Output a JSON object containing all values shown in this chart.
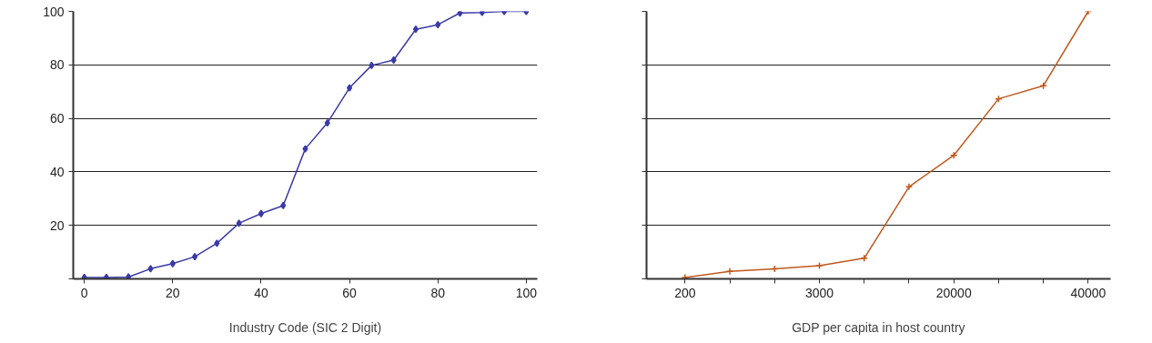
{
  "chart_data": [
    {
      "type": "line",
      "xlabel": "Industry Code (SIC 2 Digit)",
      "x": [
        0,
        5,
        10,
        15,
        20,
        25,
        30,
        35,
        40,
        45,
        50,
        55,
        60,
        65,
        70,
        75,
        80,
        85,
        90,
        95,
        100
      ],
      "series": [
        {
          "color": "#3a3aa8",
          "values": [
            0.5,
            0.5,
            0.7,
            3.8,
            5.7,
            8.3,
            13.3,
            20.8,
            24.4,
            27.4,
            48.6,
            58.3,
            71.4,
            79.8,
            81.8,
            93.3,
            95,
            99.4,
            99.6,
            100,
            100
          ]
        }
      ],
      "xlim": [
        -2.5,
        102.5
      ],
      "xticks": [
        0,
        20,
        40,
        60,
        80,
        100
      ],
      "ylim": [
        0,
        100
      ],
      "yticks": [
        {
          "value": 0,
          "label": null
        },
        20,
        40,
        60,
        80,
        100
      ],
      "grid": "y",
      "marker": "diamond",
      "line_style": "solid"
    },
    {
      "type": "line",
      "xlabel": "GDP per capita in host country",
      "categories": [
        "200",
        null,
        null,
        "3000",
        null,
        null,
        "20000",
        null,
        null,
        "40000"
      ],
      "series": [
        {
          "color": "#c0581c",
          "values": [
            0.5,
            2.8,
            3.7,
            4.9,
            7.7,
            34.4,
            46.2,
            67.3,
            72.2,
            100
          ]
        }
      ],
      "ylim": [
        0,
        100
      ],
      "yticks": [
        0,
        20,
        40,
        60,
        80,
        100
      ],
      "tick_labels": "x",
      "grid": "y",
      "marker": "cross",
      "line_style": "solid"
    }
  ]
}
